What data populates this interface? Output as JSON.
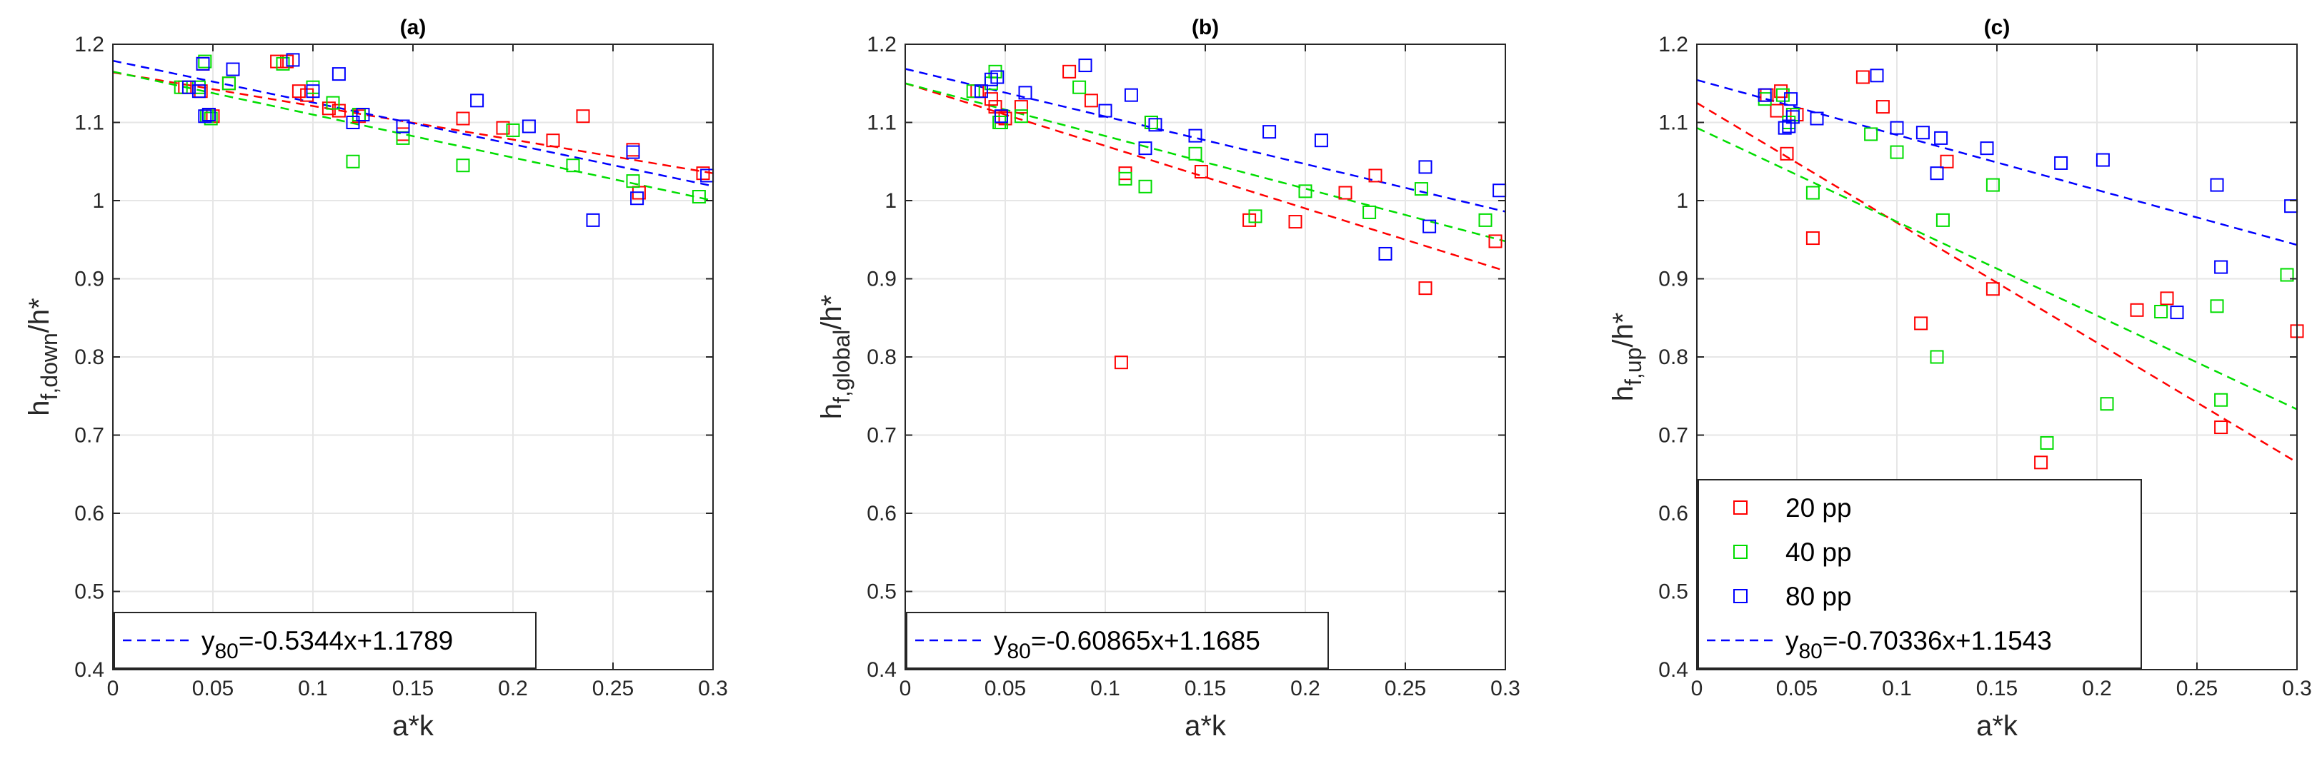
{
  "colors": {
    "red": "#ff0000",
    "green": "#00dd00",
    "blue": "#0000ff",
    "grid": "#e6e6e6",
    "axis": "#262626"
  },
  "chart_data": [
    {
      "type": "scatter",
      "title": "(a)",
      "xlabel": "a*k",
      "ylabel": {
        "main": "h",
        "sub": "f,down",
        "tail": "/h*"
      },
      "xlim": [
        0,
        0.3
      ],
      "ylim": [
        0.4,
        1.2
      ],
      "xticks": [
        0,
        0.05,
        0.1,
        0.15,
        0.2,
        0.25,
        0.3
      ],
      "xtick_labels": [
        "0",
        "0.05",
        "0.1",
        "0.15",
        "0.2",
        "0.25",
        "0.3"
      ],
      "yticks": [
        0.4,
        0.5,
        0.6,
        0.7,
        0.8,
        0.9,
        1.0,
        1.1,
        1.2
      ],
      "ytick_labels": [
        "0.4",
        "0.5",
        "0.6",
        "0.7",
        "0.8",
        "0.9",
        "1",
        "1.1",
        "1.2"
      ],
      "legend": {
        "location": "bottom-left",
        "entries": [
          {
            "series": "fit80",
            "prefix": "y",
            "sub": "80",
            "label": "=-0.5344x+1.1789"
          }
        ]
      },
      "series": [
        {
          "name": "20 pp",
          "kind": "points",
          "color": "red",
          "x": [
            0.036,
            0.044,
            0.045,
            0.048,
            0.05,
            0.058,
            0.082,
            0.087,
            0.093,
            0.097,
            0.108,
            0.113,
            0.123,
            0.145,
            0.175,
            0.195,
            0.22,
            0.235,
            0.26,
            0.263,
            0.295
          ],
          "y": [
            1.145,
            1.14,
            1.175,
            1.11,
            1.108,
            1.15,
            1.178,
            1.178,
            1.14,
            1.135,
            1.118,
            1.115,
            1.108,
            1.085,
            1.105,
            1.093,
            1.077,
            1.108,
            1.065,
            1.01,
            1.035
          ]
        },
        {
          "name": "40 pp",
          "kind": "points",
          "color": "green",
          "x": [
            0.034,
            0.043,
            0.046,
            0.047,
            0.049,
            0.058,
            0.085,
            0.1,
            0.11,
            0.12,
            0.123,
            0.145,
            0.175,
            0.2,
            0.23,
            0.26,
            0.293
          ],
          "y": [
            1.145,
            1.145,
            1.178,
            1.108,
            1.105,
            1.15,
            1.175,
            1.145,
            1.125,
            1.05,
            1.11,
            1.08,
            1.045,
            1.09,
            1.045,
            1.025,
            1.005
          ]
        },
        {
          "name": "80 pp",
          "kind": "points",
          "color": "blue",
          "x": [
            0.038,
            0.043,
            0.045,
            0.046,
            0.048,
            0.06,
            0.09,
            0.1,
            0.113,
            0.12,
            0.125,
            0.145,
            0.182,
            0.208,
            0.24,
            0.26,
            0.262,
            0.297
          ],
          "y": [
            1.145,
            1.14,
            1.175,
            1.108,
            1.11,
            1.168,
            1.18,
            1.14,
            1.162,
            1.1,
            1.11,
            1.095,
            1.128,
            1.095,
            0.975,
            1.062,
            1.003,
            1.032
          ]
        },
        {
          "name": "fit20",
          "kind": "line",
          "color": "red",
          "x": [
            0,
            0.3
          ],
          "y": [
            1.164,
            1.035
          ]
        },
        {
          "name": "fit40",
          "kind": "line",
          "color": "green",
          "x": [
            0,
            0.3
          ],
          "y": [
            1.165,
            1.0
          ]
        },
        {
          "name": "fit80",
          "kind": "line",
          "color": "blue",
          "x": [
            0,
            0.3
          ],
          "y": [
            1.1789,
            1.0186
          ]
        }
      ]
    },
    {
      "type": "scatter",
      "title": "(b)",
      "xlabel": "a*k",
      "ylabel": {
        "main": "h",
        "sub": "f,global",
        "tail": "/h*"
      },
      "xlim": [
        0,
        0.3
      ],
      "ylim": [
        0.4,
        1.2
      ],
      "xticks": [
        0,
        0.05,
        0.1,
        0.15,
        0.2,
        0.25,
        0.3
      ],
      "xtick_labels": [
        "0",
        "0.05",
        "0.1",
        "0.15",
        "0.2",
        "0.25",
        "0.3"
      ],
      "yticks": [
        0.4,
        0.5,
        0.6,
        0.7,
        0.8,
        0.9,
        1.0,
        1.1,
        1.2
      ],
      "ytick_labels": [
        "0.4",
        "0.5",
        "0.6",
        "0.7",
        "0.8",
        "0.9",
        "1",
        "1.1",
        "1.2"
      ],
      "legend": {
        "location": "bottom-left",
        "entries": [
          {
            "series": "fit80",
            "prefix": "y",
            "sub": "80",
            "label": "=-0.60865x+1.1685"
          }
        ]
      },
      "series": [
        {
          "name": "20 pp",
          "kind": "points",
          "color": "red",
          "x": [
            0.036,
            0.043,
            0.045,
            0.048,
            0.05,
            0.058,
            0.082,
            0.093,
            0.108,
            0.11,
            0.123,
            0.148,
            0.172,
            0.195,
            0.22,
            0.235,
            0.26,
            0.295
          ],
          "y": [
            1.14,
            1.13,
            1.12,
            1.107,
            1.105,
            1.12,
            1.165,
            1.128,
            0.793,
            1.035,
            1.1,
            1.037,
            0.975,
            0.973,
            1.01,
            1.032,
            0.888,
            0.948
          ]
        },
        {
          "name": "40 pp",
          "kind": "points",
          "color": "green",
          "x": [
            0.034,
            0.043,
            0.045,
            0.047,
            0.048,
            0.058,
            0.087,
            0.11,
            0.12,
            0.123,
            0.145,
            0.175,
            0.2,
            0.232,
            0.258,
            0.29
          ],
          "y": [
            1.14,
            1.15,
            1.165,
            1.1,
            1.1,
            1.108,
            1.145,
            1.028,
            1.018,
            1.1,
            1.06,
            0.98,
            1.012,
            0.985,
            1.015,
            0.975
          ]
        },
        {
          "name": "80 pp",
          "kind": "points",
          "color": "blue",
          "x": [
            0.038,
            0.043,
            0.046,
            0.048,
            0.06,
            0.09,
            0.1,
            0.113,
            0.12,
            0.125,
            0.145,
            0.182,
            0.208,
            0.24,
            0.26,
            0.262,
            0.297
          ],
          "y": [
            1.14,
            1.155,
            1.158,
            1.108,
            1.138,
            1.173,
            1.115,
            1.135,
            1.067,
            1.097,
            1.083,
            1.088,
            1.077,
            0.932,
            1.043,
            0.967,
            1.013
          ]
        },
        {
          "name": "fit20",
          "kind": "line",
          "color": "red",
          "x": [
            0,
            0.3
          ],
          "y": [
            1.15,
            0.91
          ]
        },
        {
          "name": "fit40",
          "kind": "line",
          "color": "green",
          "x": [
            0,
            0.3
          ],
          "y": [
            1.15,
            0.948
          ]
        },
        {
          "name": "fit80",
          "kind": "line",
          "color": "blue",
          "x": [
            0,
            0.3
          ],
          "y": [
            1.1685,
            0.9859
          ]
        }
      ]
    },
    {
      "type": "scatter",
      "title": "(c)",
      "xlabel": "a*k",
      "ylabel": {
        "main": "h",
        "sub": "f,up",
        "tail": "/h*"
      },
      "xlim": [
        0,
        0.3
      ],
      "ylim": [
        0.4,
        1.2
      ],
      "xticks": [
        0,
        0.05,
        0.1,
        0.15,
        0.2,
        0.25,
        0.3
      ],
      "xtick_labels": [
        "0",
        "0.05",
        "0.1",
        "0.15",
        "0.2",
        "0.25",
        "0.3"
      ],
      "yticks": [
        0.4,
        0.5,
        0.6,
        0.7,
        0.8,
        0.9,
        1.0,
        1.1,
        1.2
      ],
      "ytick_labels": [
        "0.4",
        "0.5",
        "0.6",
        "0.7",
        "0.8",
        "0.9",
        "1",
        "1.1",
        "1.2"
      ],
      "legend": {
        "location": "bottom-left",
        "entries": [
          {
            "series": "20 pp",
            "label": "20 pp"
          },
          {
            "series": "40 pp",
            "label": "40 pp"
          },
          {
            "series": "80 pp",
            "label": "80 pp"
          },
          {
            "series": "fit80",
            "prefix": "y",
            "sub": "80",
            "label": "=-0.70336x+1.1543"
          }
        ]
      },
      "series": [
        {
          "name": "20 pp",
          "kind": "points",
          "color": "red",
          "x": [
            0.035,
            0.04,
            0.042,
            0.045,
            0.048,
            0.05,
            0.058,
            0.083,
            0.093,
            0.112,
            0.125,
            0.148,
            0.172,
            0.22,
            0.235,
            0.262,
            0.3
          ],
          "y": [
            1.135,
            1.115,
            1.14,
            1.06,
            1.11,
            1.11,
            0.952,
            1.158,
            1.12,
            0.843,
            1.05,
            0.887,
            0.665,
            0.86,
            0.875,
            0.71,
            0.833
          ]
        },
        {
          "name": "40 pp",
          "kind": "points",
          "color": "green",
          "x": [
            0.034,
            0.043,
            0.046,
            0.048,
            0.058,
            0.087,
            0.1,
            0.12,
            0.123,
            0.148,
            0.175,
            0.205,
            0.232,
            0.26,
            0.262,
            0.295
          ],
          "y": [
            1.13,
            1.135,
            1.1,
            1.11,
            1.01,
            1.085,
            1.062,
            0.8,
            0.975,
            1.02,
            0.69,
            0.74,
            0.858,
            0.865,
            0.745,
            0.905
          ]
        },
        {
          "name": "80 pp",
          "kind": "points",
          "color": "blue",
          "x": [
            0.034,
            0.044,
            0.046,
            0.047,
            0.048,
            0.06,
            0.09,
            0.1,
            0.113,
            0.12,
            0.122,
            0.145,
            0.182,
            0.203,
            0.24,
            0.26,
            0.262,
            0.297
          ],
          "y": [
            1.135,
            1.093,
            1.095,
            1.13,
            1.107,
            1.105,
            1.16,
            1.093,
            1.087,
            1.035,
            1.08,
            1.067,
            1.048,
            1.052,
            0.857,
            1.02,
            0.915,
            0.993
          ]
        },
        {
          "name": "fit20",
          "kind": "line",
          "color": "red",
          "x": [
            0,
            0.3
          ],
          "y": [
            1.125,
            0.665
          ]
        },
        {
          "name": "fit40",
          "kind": "line",
          "color": "green",
          "x": [
            0,
            0.3
          ],
          "y": [
            1.093,
            0.733
          ]
        },
        {
          "name": "fit80",
          "kind": "line",
          "color": "blue",
          "x": [
            0,
            0.3
          ],
          "y": [
            1.1543,
            0.9433
          ]
        }
      ]
    }
  ]
}
